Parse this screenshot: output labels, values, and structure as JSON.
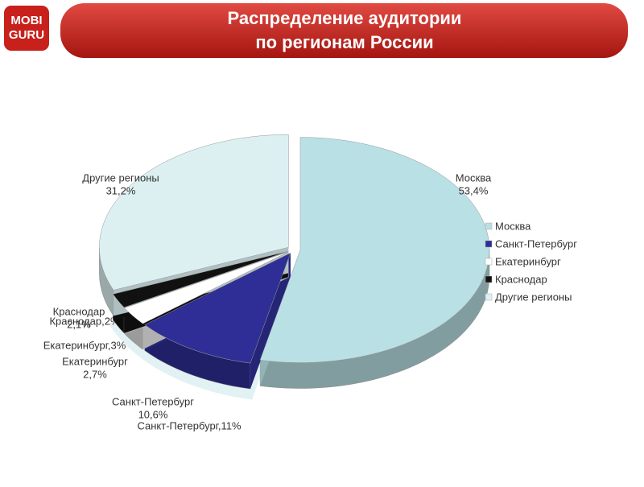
{
  "header": {
    "title_lines": [
      "Распределение аудитории",
      "по регионам России"
    ],
    "logo_lines": [
      "MOBI",
      "GURU"
    ]
  },
  "chart_data": [
    {
      "type": "pie3d",
      "categories": [
        "Москва",
        "Санкт-Петербург",
        "Екатеринбург",
        "Краснодар",
        "Другие регионы"
      ],
      "values": [
        53.4,
        10.6,
        2.7,
        2.1,
        31.2
      ],
      "value_labels": [
        "53,4%",
        "10,6%",
        "2,7%",
        "2,1%",
        "31,2%"
      ],
      "colors": [
        "#b9e0e4",
        "#2e2e96",
        "#ffffff",
        "#111111",
        "#dcf0f2"
      ],
      "legend": "right"
    },
    {
      "type": "ghost",
      "values": [
        11,
        3,
        2
      ],
      "value_labels": [
        "Санкт-Петербург,11%",
        "Екатеринбург,3%",
        "Краснодар,2%"
      ]
    }
  ]
}
